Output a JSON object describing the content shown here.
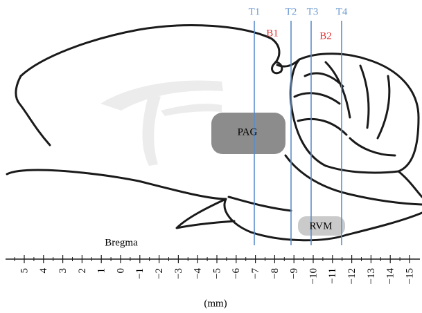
{
  "labels": {
    "cuts": [
      "T1",
      "T2",
      "T3",
      "T4"
    ],
    "blocks": [
      "B1",
      "B2"
    ],
    "regions": [
      "PAG",
      "RVM"
    ],
    "origin": "Bregma"
  },
  "axis": {
    "tick_labels": [
      "5",
      "4",
      "3",
      "2",
      "1",
      "0",
      "−1",
      "−2",
      "−3",
      "−4",
      "−5",
      "−6",
      "−7",
      "−8",
      "−9",
      "−10",
      "−11",
      "−12",
      "−13",
      "−14",
      "−15"
    ],
    "unit": "(mm)"
  }
}
